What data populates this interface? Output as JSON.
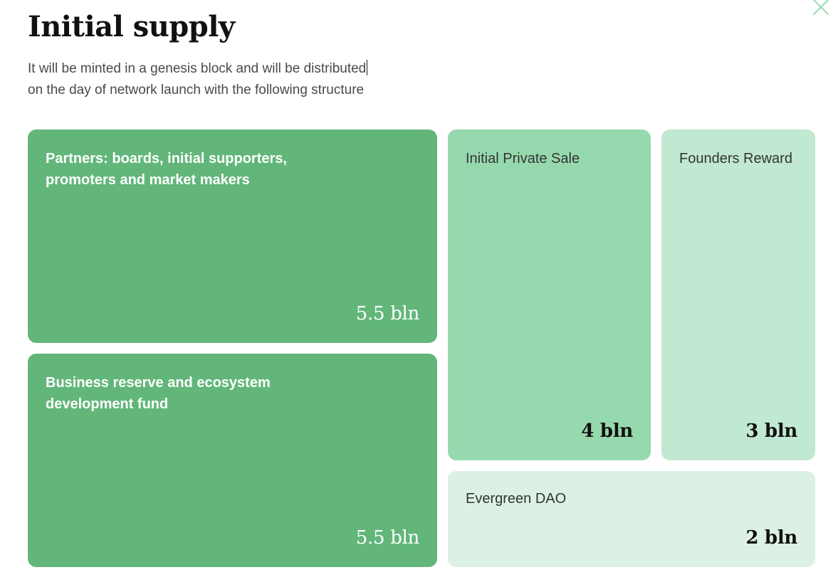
{
  "header": {
    "title": "Initial supply",
    "subtitle_line1": "It will be minted in a genesis block and will be distributed",
    "subtitle_line2": "on the day of network launch with the following structure"
  },
  "close_button": {
    "icon": "close-icon",
    "color": "#9ad9b4"
  },
  "colors": {
    "dark_green": "#62b67a",
    "mid_green": "#97d9ae",
    "light_green": "#c1e8d0",
    "pale_green": "#dcf1e3"
  },
  "chart_data": {
    "type": "table",
    "unit": "bln",
    "items": [
      {
        "label": "Partners: boards, initial supporters, promoters and market makers",
        "value": 5.5
      },
      {
        "label": "Business reserve and ecosystem development fund",
        "value": 5.5
      },
      {
        "label": "Initial Private Sale",
        "value": 4
      },
      {
        "label": "Founders Reward",
        "value": 3
      },
      {
        "label": "Evergreen DAO",
        "value": 2
      }
    ]
  },
  "cards": {
    "partners": {
      "label_line1": "Partners: boards, initial supporters,",
      "label_line2": "promoters and market makers",
      "value": "5.5 bln"
    },
    "business": {
      "label_line1": "Business reserve and ecosystem",
      "label_line2": "development fund",
      "value": "5.5 bln"
    },
    "private_sale": {
      "label": "Initial Private Sale",
      "value": "4 bln"
    },
    "founders": {
      "label": "Founders Reward",
      "value": "3 bln"
    },
    "dao": {
      "label": "Evergreen DAO",
      "value": "2 bln"
    }
  }
}
